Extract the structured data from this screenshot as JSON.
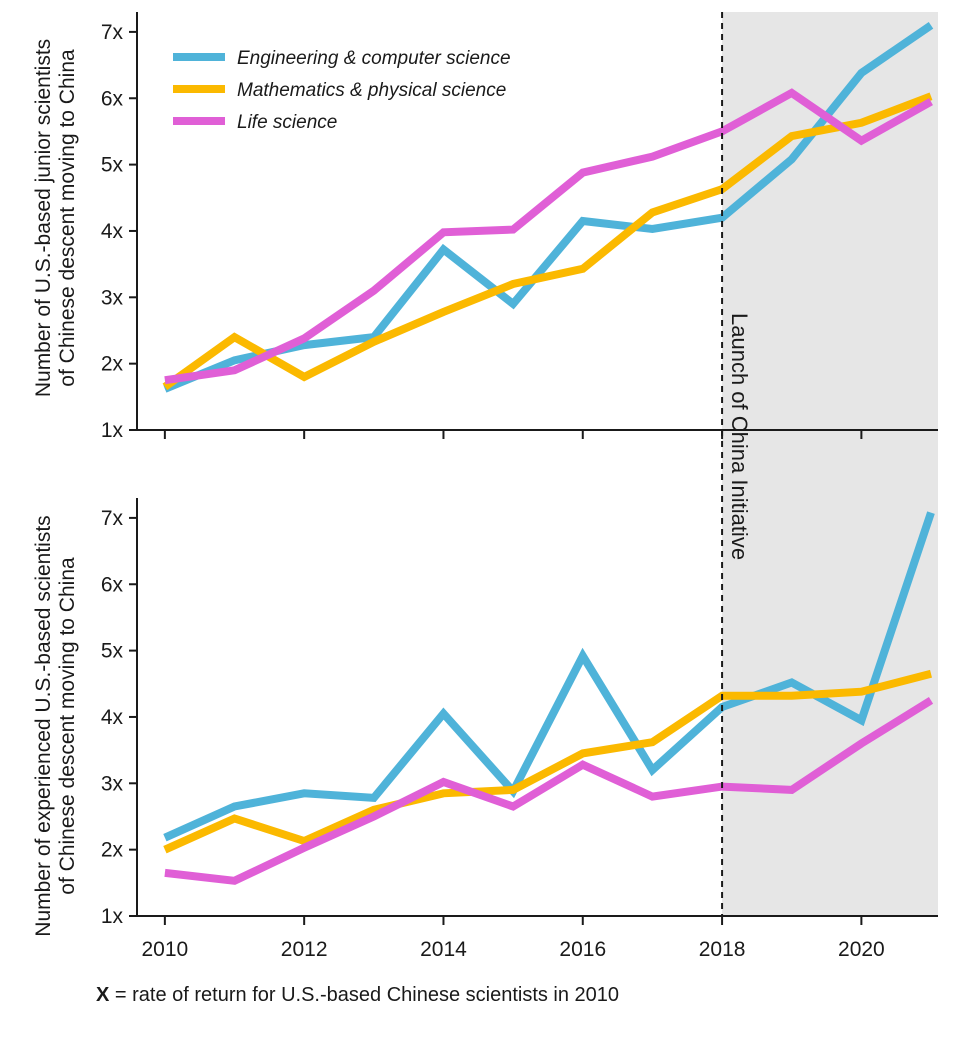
{
  "chart_data": [
    {
      "type": "line",
      "ylabel": [
        "Number of U.S.-based junior scientists",
        "of Chinese descent moving to China"
      ],
      "x": [
        2010,
        2011,
        2012,
        2013,
        2014,
        2015,
        2016,
        2017,
        2018,
        2019,
        2020,
        2021
      ],
      "xlim": [
        2009.6,
        2021.1
      ],
      "ylim": [
        1,
        7.3
      ],
      "yticks": [
        1,
        2,
        3,
        4,
        5,
        6,
        7
      ],
      "ytick_labels": [
        "1x",
        "2x",
        "3x",
        "4x",
        "5x",
        "6x",
        "7x"
      ],
      "series": [
        {
          "name": "Engineering & computer science",
          "color": "#4fb3d9",
          "values": [
            1.62,
            2.05,
            2.28,
            2.4,
            3.72,
            2.9,
            4.15,
            4.03,
            4.2,
            5.08,
            6.38,
            7.1
          ]
        },
        {
          "name": "Mathematics & physical science",
          "color": "#fbb900",
          "values": [
            1.65,
            2.4,
            1.8,
            2.33,
            2.78,
            3.2,
            3.43,
            4.28,
            4.63,
            5.43,
            5.63,
            6.03
          ]
        },
        {
          "name": "Life science",
          "color": "#e05fd6",
          "values": [
            1.75,
            1.9,
            2.38,
            3.1,
            3.98,
            4.02,
            4.88,
            5.12,
            5.5,
            6.08,
            5.36,
            5.95
          ]
        }
      ],
      "legend": "top-left"
    },
    {
      "type": "line",
      "ylabel": [
        "Number of experienced U.S.-based scientists",
        "of Chinese descent moving to China"
      ],
      "x": [
        2010,
        2011,
        2012,
        2013,
        2014,
        2015,
        2016,
        2017,
        2018,
        2019,
        2020,
        2021
      ],
      "xlim": [
        2009.6,
        2021.1
      ],
      "ylim": [
        1,
        7.3
      ],
      "yticks": [
        1,
        2,
        3,
        4,
        5,
        6,
        7
      ],
      "ytick_labels": [
        "1x",
        "2x",
        "3x",
        "4x",
        "5x",
        "6x",
        "7x"
      ],
      "xticks": [
        2010,
        2012,
        2014,
        2016,
        2018,
        2020
      ],
      "xtick_labels": [
        "2010",
        "2012",
        "2014",
        "2016",
        "2018",
        "2020"
      ],
      "series": [
        {
          "name": "Engineering & computer science",
          "color": "#4fb3d9",
          "values": [
            2.18,
            2.65,
            2.85,
            2.78,
            4.05,
            2.88,
            4.92,
            3.2,
            4.15,
            4.52,
            3.95,
            7.08
          ]
        },
        {
          "name": "Mathematics & physical science",
          "color": "#fbb900",
          "values": [
            2.0,
            2.47,
            2.13,
            2.6,
            2.85,
            2.9,
            3.45,
            3.62,
            4.32,
            4.32,
            4.38,
            4.65
          ]
        },
        {
          "name": "Life science",
          "color": "#e05fd6",
          "values": [
            1.65,
            1.53,
            2.03,
            2.5,
            3.02,
            2.65,
            3.28,
            2.8,
            2.95,
            2.9,
            3.6,
            4.25
          ]
        }
      ]
    }
  ],
  "annotation": {
    "text": "Launch of China Initiative",
    "x": 2018,
    "shade_from": 2018
  },
  "footnote": {
    "bold": "X",
    "text": " = rate of return for U.S.-based Chinese scientists in 2010"
  },
  "colors": {
    "shade": "#e6e6e6",
    "axis": "#1a1a1a"
  }
}
